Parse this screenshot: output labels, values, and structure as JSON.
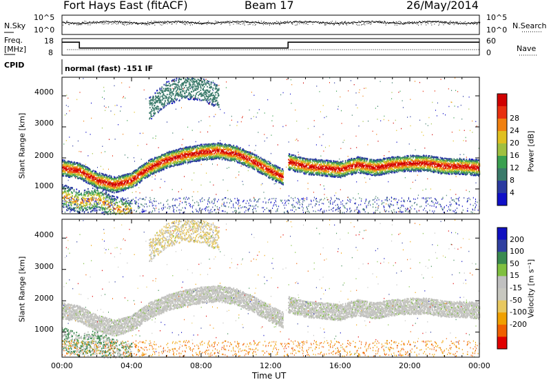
{
  "header": {
    "radar": "Fort Hays East (fitACF)",
    "beam": "Beam 17",
    "date": "26/May/2014"
  },
  "top_panel": {
    "nsky_label": "N.Sky",
    "nsearch_label": "N.Search",
    "freq_label_1": "Freq.",
    "freq_label_2": "[MHz]",
    "nave_label": "Nave",
    "cpid_label": "CPID",
    "cpid_value": "normal (fast) -151 IF",
    "noise_ticks_left": [
      "10^5",
      "10^0"
    ],
    "noise_ticks_right": [
      "10^5",
      "10^0"
    ],
    "freq_ticks": [
      "18",
      "8"
    ],
    "nave_ticks": [
      "60",
      "0"
    ]
  },
  "colors": {
    "power": [
      "#1010c8",
      "#2a3aa0",
      "#3a7a6a",
      "#3aa050",
      "#a0c040",
      "#e0c020",
      "#f08010",
      "#e83010",
      "#d00000"
    ],
    "velocity": [
      "#e00000",
      "#f06000",
      "#f0a000",
      "#e8c860",
      "#c8c8c0",
      "#c0c0c0",
      "#80c040",
      "#3a8a50",
      "#3040a0",
      "#1010c0"
    ]
  },
  "chart_data": [
    {
      "type": "heatmap",
      "name": "power",
      "ylabel": "Slant Range [km]",
      "yticks": [
        "1000",
        "2000",
        "3000",
        "4000"
      ],
      "ylim": [
        200,
        4600
      ],
      "colorbar_label": "Power [dB]",
      "colorbar_ticks": [
        "4",
        "8",
        "12",
        "16",
        "20",
        "24",
        "28"
      ],
      "clim": [
        0,
        32
      ],
      "bands": [
        {
          "x": [
            0,
            1,
            2,
            3,
            4,
            5,
            6,
            7,
            8,
            9,
            10,
            11,
            12,
            12.7
          ],
          "y": [
            1700,
            1600,
            1300,
            1150,
            1300,
            1700,
            1950,
            2100,
            2200,
            2250,
            2150,
            1900,
            1600,
            1400
          ]
        },
        {
          "x": [
            13,
            14,
            15,
            16,
            17,
            18,
            19,
            20,
            21,
            22,
            23,
            24
          ],
          "y": [
            1900,
            1750,
            1700,
            1650,
            1800,
            1700,
            1800,
            1850,
            1850,
            1750,
            1750,
            1700
          ]
        },
        {
          "x": [
            0,
            1,
            2,
            3,
            4
          ],
          "y": [
            800,
            600,
            700,
            400,
            300
          ]
        },
        {
          "x": [
            5,
            6,
            7,
            8,
            9
          ],
          "y": [
            3600,
            4100,
            4300,
            4250,
            4000
          ]
        }
      ],
      "xlabel": "",
      "xticks": [
        "00:00",
        "04:00",
        "08:00",
        "12:00",
        "16:00",
        "20:00",
        "00:00"
      ],
      "xlim": [
        0,
        24
      ]
    },
    {
      "type": "heatmap",
      "name": "velocity",
      "ylabel": "Slant Range [km]",
      "yticks": [
        "1000",
        "2000",
        "3000",
        "4000"
      ],
      "ylim": [
        200,
        4600
      ],
      "colorbar_label": "Velocity [m s⁻¹]",
      "colorbar_ticks": [
        "200",
        "100",
        "50",
        "15",
        "-15",
        "-50",
        "-100",
        "-200"
      ],
      "clim": [
        -250,
        250
      ],
      "xlabel": "Time UT",
      "xticks": [
        "00:00",
        "04:00",
        "08:00",
        "12:00",
        "16:00",
        "20:00",
        "00:00"
      ],
      "xlim": [
        0,
        24
      ]
    }
  ]
}
